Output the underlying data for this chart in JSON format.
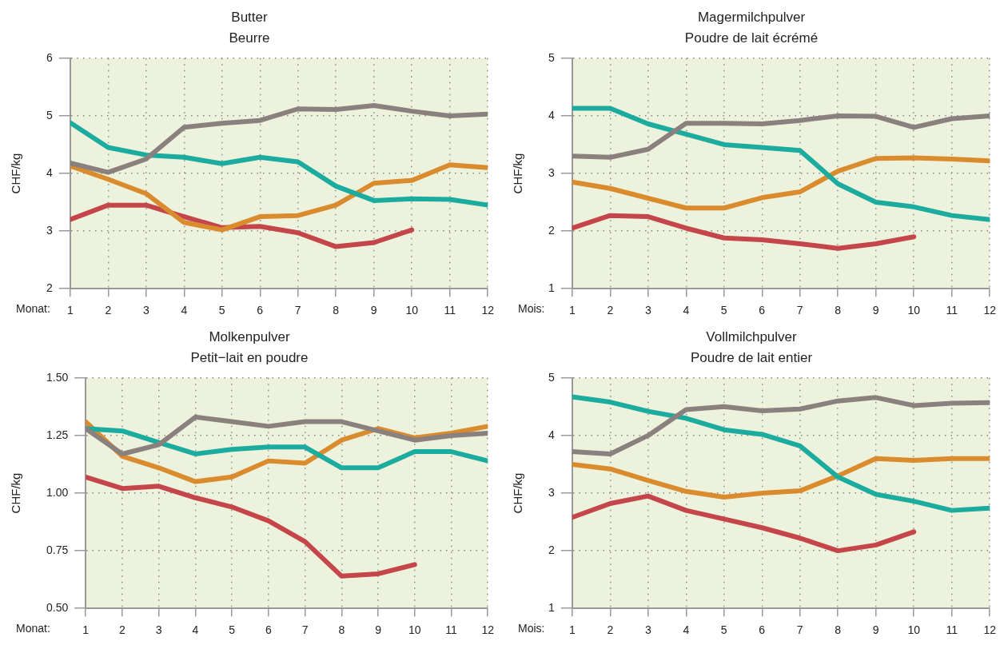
{
  "chart_data": [
    {
      "type": "line",
      "title": "Butter",
      "subtitle": "Beurre",
      "xlabel": "Monat:",
      "ylabel": "CHF/kg",
      "x": [
        1,
        2,
        3,
        4,
        5,
        6,
        7,
        8,
        9,
        10,
        11,
        12
      ],
      "xlim": [
        1,
        12
      ],
      "xticks": [
        1,
        2,
        3,
        4,
        5,
        6,
        7,
        8,
        9,
        10,
        11,
        12
      ],
      "ylim": [
        2,
        6
      ],
      "yticks": [
        2,
        3,
        4,
        5,
        6
      ],
      "grid": true,
      "line_style": "solid",
      "marker": "none",
      "series": [
        {
          "color": "#8a807e",
          "values": [
            4.18,
            4.02,
            4.25,
            4.8,
            4.87,
            4.92,
            5.12,
            5.11,
            5.18,
            5.08,
            5.0,
            5.03
          ]
        },
        {
          "color": "#1cab9f",
          "values": [
            4.88,
            4.45,
            4.32,
            4.28,
            4.17,
            4.28,
            4.2,
            3.78,
            3.53,
            3.56,
            3.55,
            3.45
          ]
        },
        {
          "color": "#d98b2d",
          "values": [
            4.13,
            3.9,
            3.65,
            3.15,
            3.02,
            3.25,
            3.27,
            3.45,
            3.83,
            3.88,
            4.15,
            4.1
          ]
        },
        {
          "color": "#c4464a",
          "values": [
            3.2,
            3.45,
            3.45,
            3.25,
            3.06,
            3.08,
            2.97,
            2.73,
            2.8,
            3.02,
            null,
            null
          ]
        }
      ]
    },
    {
      "type": "line",
      "title": "Magermilchpulver",
      "subtitle": "Poudre de lait écrémé",
      "xlabel": "Mois:",
      "ylabel": "CHF/kg",
      "x": [
        1,
        2,
        3,
        4,
        5,
        6,
        7,
        8,
        9,
        10,
        11,
        12
      ],
      "xlim": [
        1,
        12
      ],
      "xticks": [
        1,
        2,
        3,
        4,
        5,
        6,
        7,
        8,
        9,
        10,
        11,
        12
      ],
      "ylim": [
        1,
        5
      ],
      "yticks": [
        1,
        2,
        3,
        4,
        5
      ],
      "grid": true,
      "line_style": "solid",
      "marker": "none",
      "series": [
        {
          "color": "#8a807e",
          "values": [
            3.3,
            3.28,
            3.42,
            3.87,
            3.87,
            3.86,
            3.92,
            4.0,
            3.99,
            3.8,
            3.95,
            4.0
          ]
        },
        {
          "color": "#1cab9f",
          "values": [
            4.13,
            4.13,
            3.86,
            3.68,
            3.5,
            3.45,
            3.4,
            2.82,
            2.5,
            2.42,
            2.27,
            2.2
          ]
        },
        {
          "color": "#d98b2d",
          "values": [
            2.85,
            2.74,
            2.57,
            2.4,
            2.4,
            2.58,
            2.68,
            3.04,
            3.26,
            3.27,
            3.25,
            3.22
          ]
        },
        {
          "color": "#c4464a",
          "values": [
            2.05,
            2.27,
            2.25,
            2.05,
            1.88,
            1.85,
            1.78,
            1.7,
            1.78,
            1.9,
            null,
            null
          ]
        }
      ]
    },
    {
      "type": "line",
      "title": "Molkenpulver",
      "subtitle": "Petit−lait en poudre",
      "xlabel": "Monat:",
      "ylabel": "CHF/kg",
      "x": [
        1,
        2,
        3,
        4,
        5,
        6,
        7,
        8,
        9,
        10,
        11,
        12
      ],
      "xlim": [
        1,
        12
      ],
      "xticks": [
        1,
        2,
        3,
        4,
        5,
        6,
        7,
        8,
        9,
        10,
        11,
        12
      ],
      "ylim": [
        0.5,
        1.5
      ],
      "yticks": [
        {
          "value": 0.5,
          "label": "0.50"
        },
        {
          "value": 0.75,
          "label": "0.75"
        },
        {
          "value": 1,
          "label": "1.00"
        },
        {
          "value": 1.25,
          "label": "1.25"
        },
        {
          "value": 1.5,
          "label": "1.50"
        }
      ],
      "grid": true,
      "line_style": "solid",
      "marker": "none",
      "series": [
        {
          "color": "#8a807e",
          "values": [
            1.28,
            1.17,
            1.21,
            1.33,
            1.31,
            1.29,
            1.31,
            1.31,
            1.27,
            1.23,
            1.25,
            1.26
          ]
        },
        {
          "color": "#1cab9f",
          "values": [
            1.28,
            1.27,
            1.22,
            1.17,
            1.19,
            1.2,
            1.2,
            1.11,
            1.11,
            1.18,
            1.18,
            1.14
          ]
        },
        {
          "color": "#d98b2d",
          "values": [
            1.31,
            1.16,
            1.11,
            1.05,
            1.07,
            1.14,
            1.13,
            1.23,
            1.28,
            1.24,
            1.26,
            1.29
          ]
        },
        {
          "color": "#c4464a",
          "values": [
            1.07,
            1.02,
            1.03,
            0.98,
            0.94,
            0.88,
            0.79,
            0.64,
            0.65,
            0.69,
            null,
            null
          ]
        }
      ]
    },
    {
      "type": "line",
      "title": "Vollmilchpulver",
      "subtitle": "Poudre de lait entier",
      "xlabel": "Mois:",
      "ylabel": "CHF/kg",
      "x": [
        1,
        2,
        3,
        4,
        5,
        6,
        7,
        8,
        9,
        10,
        11,
        12
      ],
      "xlim": [
        1,
        12
      ],
      "xticks": [
        1,
        2,
        3,
        4,
        5,
        6,
        7,
        8,
        9,
        10,
        11,
        12
      ],
      "ylim": [
        1,
        5
      ],
      "yticks": [
        1,
        2,
        3,
        4,
        5
      ],
      "grid": true,
      "line_style": "solid",
      "marker": "none",
      "series": [
        {
          "color": "#8a807e",
          "values": [
            3.72,
            3.68,
            4.0,
            4.45,
            4.5,
            4.43,
            4.46,
            4.6,
            4.66,
            4.52,
            4.56,
            4.57
          ]
        },
        {
          "color": "#1cab9f",
          "values": [
            4.67,
            4.58,
            4.42,
            4.3,
            4.1,
            4.02,
            3.82,
            3.28,
            2.98,
            2.86,
            2.7,
            2.74
          ]
        },
        {
          "color": "#d98b2d",
          "values": [
            3.5,
            3.42,
            3.22,
            3.03,
            2.93,
            3.0,
            3.04,
            3.3,
            3.6,
            3.57,
            3.6,
            3.6
          ]
        },
        {
          "color": "#c4464a",
          "values": [
            2.58,
            2.82,
            2.95,
            2.7,
            2.55,
            2.4,
            2.22,
            2.0,
            2.1,
            2.33,
            null,
            null
          ]
        }
      ]
    }
  ]
}
